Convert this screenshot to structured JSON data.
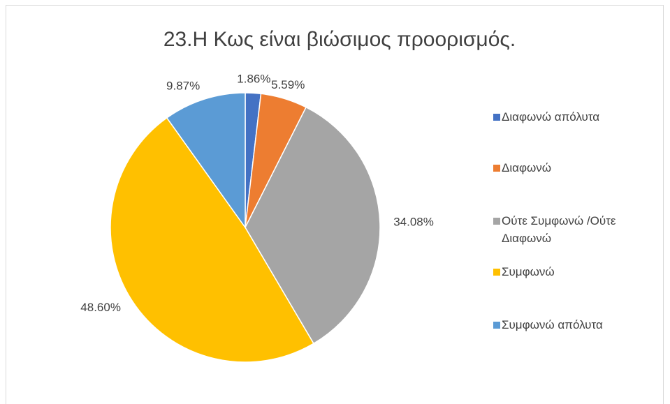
{
  "chart_data": {
    "type": "pie",
    "title": "23.Η Κως είναι βιώσιμος προορισμός.",
    "categories": [
      "Διαφωνώ απόλυτα",
      "Διαφωνώ",
      "Ούτε Συμφωνώ /Ούτε Διαφωνώ",
      "Συμφωνώ",
      "Συμφωνώ απόλυτα"
    ],
    "values": [
      1.86,
      5.59,
      34.08,
      48.6,
      9.87
    ],
    "value_labels": [
      "1.86%",
      "5.59%",
      "34.08%",
      "48.60%",
      "9.87%"
    ],
    "colors": [
      "#4472c4",
      "#ed7d31",
      "#a5a5a5",
      "#ffc000",
      "#5b9bd5"
    ],
    "legend": "right"
  }
}
